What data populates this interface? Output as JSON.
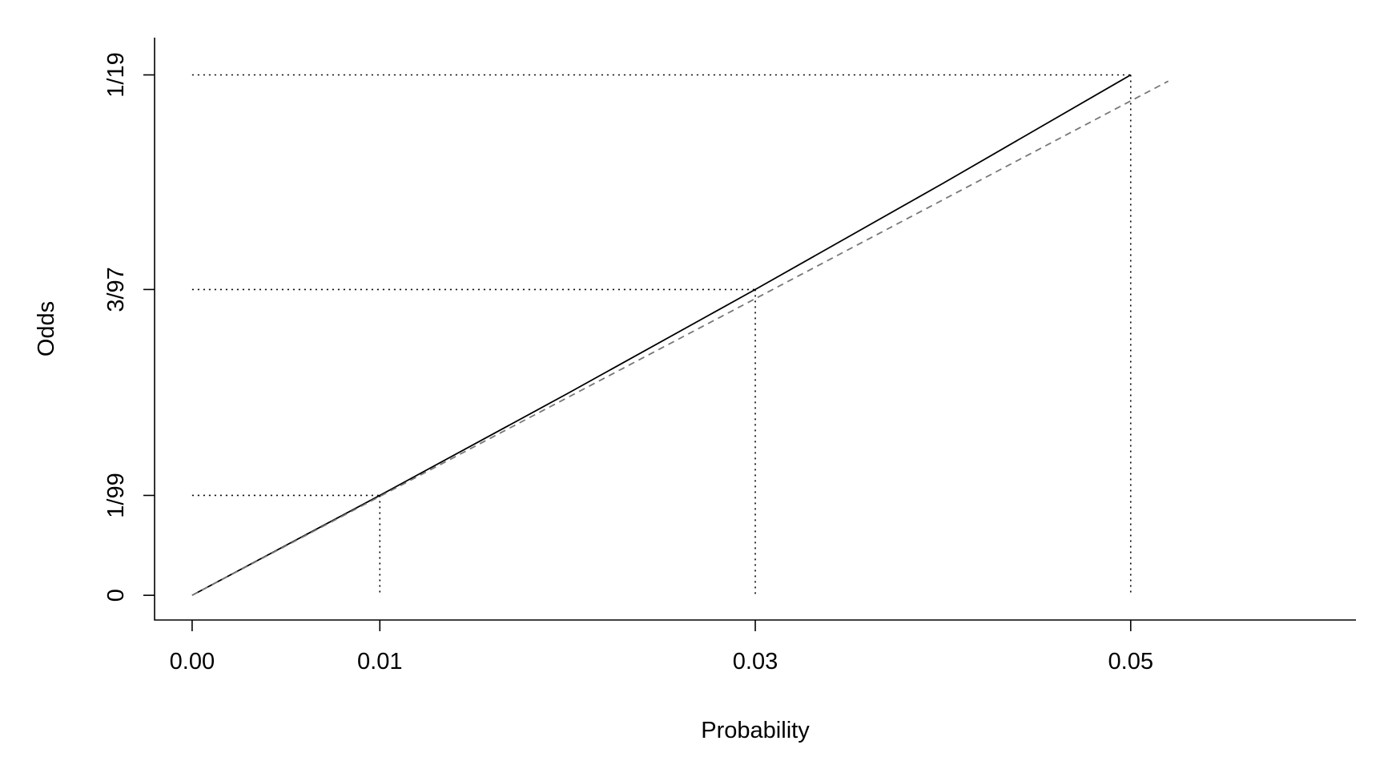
{
  "chart_data": {
    "type": "line",
    "title": "",
    "xlabel": "Probability",
    "ylabel": "Odds",
    "xlim": [
      -0.002,
      0.062
    ],
    "ylim": [
      -0.0025,
      0.0564
    ],
    "x_ticks": [
      {
        "value": 0.0,
        "label": "0.00"
      },
      {
        "value": 0.01,
        "label": "0.01"
      },
      {
        "value": 0.03,
        "label": "0.03"
      },
      {
        "value": 0.05,
        "label": "0.05"
      }
    ],
    "y_ticks": [
      {
        "value": 0,
        "label": "0"
      },
      {
        "value": 0.010101,
        "label": "1/99"
      },
      {
        "value": 0.030928,
        "label": "3/97"
      },
      {
        "value": 0.052632,
        "label": "1/19"
      }
    ],
    "series": [
      {
        "style": "solid",
        "color": "#000000",
        "x": [
          0,
          0.01,
          0.02,
          0.03,
          0.04,
          0.05
        ],
        "y": [
          0,
          0.010101,
          0.020408,
          0.030928,
          0.041667,
          0.052632
        ]
      },
      {
        "style": "dashed",
        "color": "#777777",
        "x": [
          0,
          0.052
        ],
        "y": [
          0,
          0.052
        ]
      }
    ],
    "guide_points": [
      {
        "x": 0.01,
        "y": 0.010101
      },
      {
        "x": 0.03,
        "y": 0.030928
      },
      {
        "x": 0.05,
        "y": 0.052632
      }
    ],
    "grid": false,
    "legend": "none"
  }
}
